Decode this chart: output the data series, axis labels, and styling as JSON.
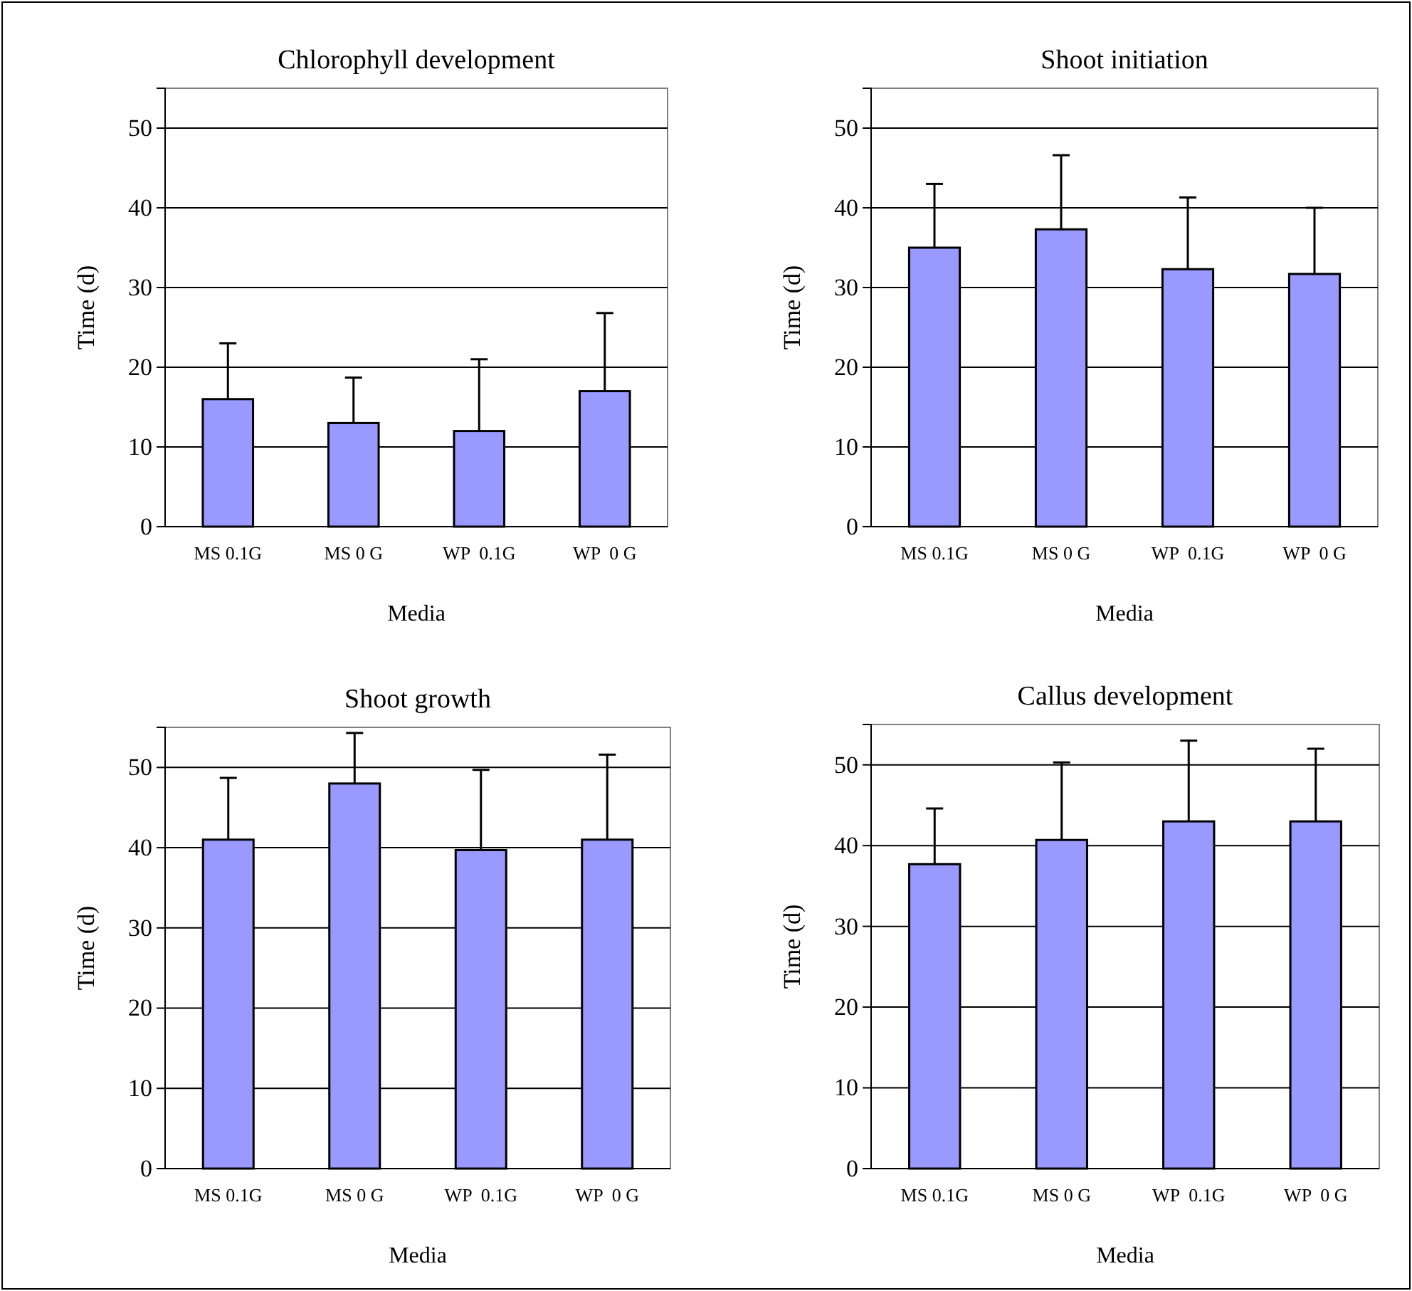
{
  "chart_data": [
    {
      "type": "bar",
      "title": "Chlorophyll development",
      "xlabel": "Media",
      "ylabel": "Time (d)",
      "categories": [
        "MS 0.1G",
        "MS 0 G",
        "WP  0.1G",
        "WP  0 G"
      ],
      "values": [
        16,
        13,
        12,
        17
      ],
      "errors": [
        [
          16,
          23
        ],
        [
          13,
          18.7
        ],
        [
          12,
          21
        ],
        [
          17,
          26.8
        ]
      ],
      "color": "#9999ff",
      "ylim": [
        0,
        55
      ],
      "yticks": [
        0,
        10,
        20,
        30,
        40,
        50
      ],
      "grid": "y"
    },
    {
      "type": "bar",
      "title": "Shoot initiation",
      "xlabel": "Media",
      "ylabel": "Time (d)",
      "categories": [
        "MS 0.1G",
        "MS 0 G",
        "WP  0.1G",
        "WP  0 G"
      ],
      "values": [
        35,
        37.3,
        32.3,
        31.7
      ],
      "errors": [
        [
          35,
          43
        ],
        [
          37.3,
          46.6
        ],
        [
          32.3,
          41.3
        ],
        [
          31.7,
          40
        ]
      ],
      "color": "#9999ff",
      "ylim": [
        0,
        55
      ],
      "yticks": [
        0,
        10,
        20,
        30,
        40,
        50
      ],
      "grid": "y"
    },
    {
      "type": "bar",
      "title": "Shoot growth",
      "xlabel": "Media",
      "ylabel": "Time (d)",
      "categories": [
        "MS 0.1G",
        "MS 0 G",
        "WP  0.1G",
        "WP  0 G"
      ],
      "values": [
        41,
        48,
        39.7,
        41
      ],
      "errors": [
        [
          41,
          48.7
        ],
        [
          48,
          54.3
        ],
        [
          39.7,
          49.7
        ],
        [
          41,
          51.6
        ]
      ],
      "color": "#9999ff",
      "ylim": [
        0,
        55
      ],
      "yticks": [
        0,
        10,
        20,
        30,
        40,
        50
      ],
      "grid": "y"
    },
    {
      "type": "bar",
      "title": "Callus development",
      "xlabel": "Media",
      "ylabel": "Time (d)",
      "categories": [
        "MS 0.1G",
        "MS 0 G",
        "WP  0.1G",
        "WP  0 G"
      ],
      "values": [
        37.7,
        40.7,
        43,
        43
      ],
      "errors": [
        [
          37.7,
          44.6
        ],
        [
          40.7,
          50.3
        ],
        [
          43,
          53
        ],
        [
          43,
          52
        ]
      ],
      "color": "#9999ff",
      "ylim": [
        0,
        55
      ],
      "yticks": [
        0,
        10,
        20,
        30,
        40,
        50
      ],
      "grid": "y"
    }
  ]
}
